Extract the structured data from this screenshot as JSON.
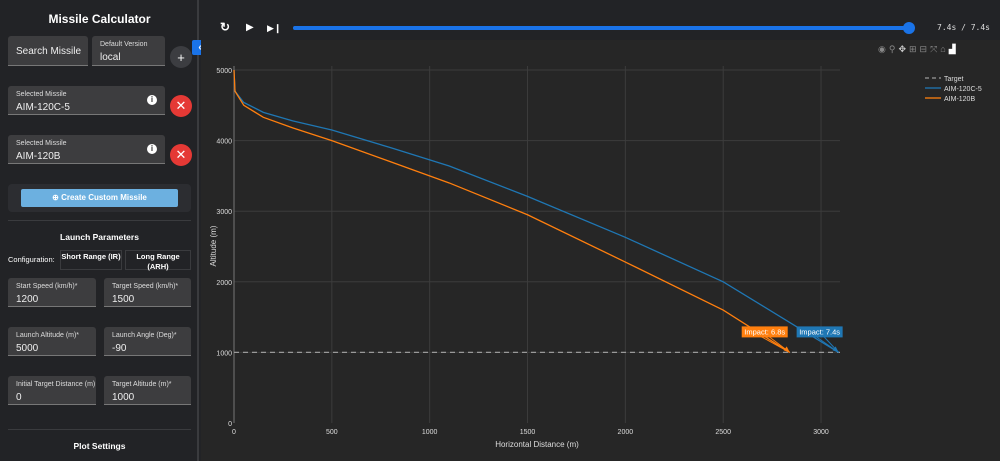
{
  "sidebar": {
    "title": "Missile Calculator",
    "search_label": "Search Missile",
    "version": {
      "label": "Default Version",
      "value": "local"
    },
    "add_icon": "plus-icon",
    "selected": [
      {
        "label": "Selected Missile",
        "value": "AIM-120C-5"
      },
      {
        "label": "Selected Missile",
        "value": "AIM-120B"
      }
    ],
    "create_custom": "Create Custom Missile",
    "launch_title": "Launch Parameters",
    "config_label": "Configuration:",
    "config_short": "Short Range (IR)",
    "config_long": "Long Range (ARH)",
    "fields": [
      {
        "label": "Start Speed (km/h)*",
        "value": "1200"
      },
      {
        "label": "Target Speed (km/h)*",
        "value": "1500"
      },
      {
        "label": "Launch Altitude (m)*",
        "value": "5000"
      },
      {
        "label": "Launch Angle (Deg)*",
        "value": "-90"
      },
      {
        "label": "Initial Target Distance (m)",
        "value": "0"
      },
      {
        "label": "Target Altitude (m)*",
        "value": "1000"
      }
    ],
    "plot_title": "Plot Settings"
  },
  "player": {
    "time": "7.4s / 7.4s",
    "progress": 1.0,
    "accent": "#1a73e8"
  },
  "chart_data": {
    "type": "line",
    "xlabel": "Horizontal Distance (m)",
    "ylabel": "Altitude (m)",
    "xlim": [
      0,
      3097
    ],
    "ylim": [
      0,
      5000
    ],
    "xticks": [
      0,
      500,
      1000,
      1500,
      2000,
      2500,
      3000
    ],
    "yticks": [
      0,
      1000,
      2000,
      3000,
      4000,
      5000
    ],
    "grid": true,
    "legend": "top-right",
    "series": [
      {
        "name": "Target",
        "color": "#999999",
        "dash": true,
        "x": [
          0,
          3097
        ],
        "y": [
          1000,
          1000
        ]
      },
      {
        "name": "AIM-120C-5",
        "color": "#1f77b4",
        "x": [
          0,
          5,
          50,
          150,
          300,
          500,
          800,
          1100,
          1500,
          2000,
          2500,
          3090
        ],
        "y": [
          5000,
          4700,
          4540,
          4400,
          4280,
          4150,
          3900,
          3640,
          3210,
          2630,
          2000,
          1000
        ]
      },
      {
        "name": "AIM-120B",
        "color": "#ff7f0e",
        "x": [
          0,
          5,
          50,
          150,
          300,
          500,
          800,
          1100,
          1500,
          2000,
          2500,
          2840
        ],
        "y": [
          5000,
          4700,
          4500,
          4330,
          4180,
          4000,
          3700,
          3400,
          2950,
          2280,
          1600,
          1000
        ]
      }
    ],
    "annotations": [
      {
        "text": "Impact: 6.8s",
        "x": 2840,
        "y": 1000,
        "color": "#ff7f0e"
      },
      {
        "text": "Impact: 7.4s",
        "x": 3090,
        "y": 1000,
        "color": "#1f77b4"
      }
    ]
  }
}
